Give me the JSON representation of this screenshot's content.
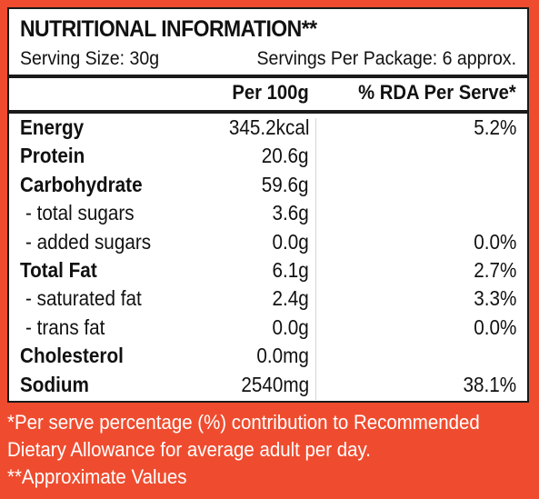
{
  "title": "NUTRITIONAL INFORMATION**",
  "serving_size": "Serving Size: 30g",
  "servings_per_package": "Servings Per Package: 6 approx.",
  "columns": {
    "per100": "Per 100g",
    "rda": "% RDA Per Serve*"
  },
  "rows": [
    {
      "label": "Energy",
      "per100": "345.2kcal",
      "rda": "5.2%"
    },
    {
      "label": "Protein",
      "per100": "20.6g",
      "rda": ""
    },
    {
      "label": "Carbohydrate",
      "per100": "59.6g",
      "rda": ""
    },
    {
      "label": "- total sugars",
      "per100": "3.6g",
      "rda": ""
    },
    {
      "label": "- added sugars",
      "per100": "0.0g",
      "rda": "0.0%"
    },
    {
      "label": "Total Fat",
      "per100": "6.1g",
      "rda": "2.7%"
    },
    {
      "label": "- saturated fat",
      "per100": "2.4g",
      "rda": "3.3%"
    },
    {
      "label": "- trans fat",
      "per100": "0.0g",
      "rda": "0.0%"
    },
    {
      "label": "Cholesterol",
      "per100": "0.0mg",
      "rda": ""
    },
    {
      "label": "Sodium",
      "per100": "2540mg",
      "rda": "38.1%"
    }
  ],
  "footnotes": [
    "*Per serve percentage (%) contribution to Recommended",
    "Dietary Allowance for average adult per day.",
    "**Approximate Values"
  ],
  "colors": {
    "background": "#ef4c2f",
    "panel": "#ffffff",
    "text": "#111111"
  }
}
